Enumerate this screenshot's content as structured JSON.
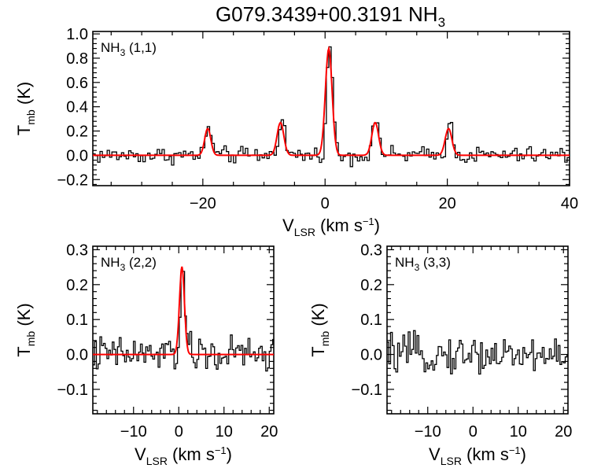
{
  "title": {
    "main": "G079.3439+00.3191 NH",
    "sub": "3"
  },
  "colors": {
    "observed": "#000000",
    "fit": "#ff0000"
  },
  "chart_data": [
    {
      "id": "nh3-11",
      "type": "line",
      "panel_label": {
        "main": "NH",
        "sub": "3",
        "rest": " (1,1)"
      },
      "xlabel": {
        "main": "V",
        "sub": "LSR",
        "rest": " (km s",
        "sup": "−1",
        "end": ")"
      },
      "ylabel": {
        "main": "T",
        "sub": "mb",
        "rest": " (K)"
      },
      "xlim": [
        -38,
        40
      ],
      "ylim": [
        -0.25,
        1.02
      ],
      "xticks": [
        -20,
        0,
        20,
        40
      ],
      "xtick_labels": [
        "−20",
        "0",
        "20",
        "40"
      ],
      "yticks": [
        -0.2,
        0.0,
        0.2,
        0.4,
        0.6,
        0.8,
        1.0
      ],
      "ytick_labels": [
        "−0.2",
        "0.0",
        "0.2",
        "0.4",
        "0.6",
        "0.8",
        "1.0"
      ],
      "series": [
        {
          "name": "observed",
          "style": "step",
          "x0": -38,
          "dx": 0.39,
          "noise_amp": 0.06,
          "components": [
            {
              "center": -19.2,
              "amp": 0.25,
              "sigma": 0.45
            },
            {
              "center": -7.3,
              "amp": 0.32,
              "sigma": 0.5
            },
            {
              "center": 0.6,
              "amp": 0.9,
              "sigma": 0.5
            },
            {
              "center": 8.2,
              "amp": 0.3,
              "sigma": 0.5
            },
            {
              "center": 20.2,
              "amp": 0.26,
              "sigma": 0.5
            }
          ]
        },
        {
          "name": "fit",
          "style": "line",
          "components": [
            {
              "center": -19.2,
              "amp": 0.22,
              "sigma": 0.5
            },
            {
              "center": -7.3,
              "amp": 0.27,
              "sigma": 0.55
            },
            {
              "center": 0.6,
              "amp": 0.88,
              "sigma": 0.55
            },
            {
              "center": 8.2,
              "amp": 0.27,
              "sigma": 0.55
            },
            {
              "center": 20.2,
              "amp": 0.22,
              "sigma": 0.55
            }
          ]
        }
      ]
    },
    {
      "id": "nh3-22",
      "type": "line",
      "panel_label": {
        "main": "NH",
        "sub": "3",
        "rest": " (2,2)"
      },
      "xlabel": {
        "main": "V",
        "sub": "LSR",
        "rest": " (km s",
        "sup": "−1",
        "end": ")"
      },
      "ylabel": {
        "main": "T",
        "sub": "mb",
        "rest": " (K)"
      },
      "xlim": [
        -19,
        21
      ],
      "ylim": [
        -0.17,
        0.31
      ],
      "xticks": [
        -10,
        0,
        10,
        20
      ],
      "xtick_labels": [
        "−10",
        "0",
        "10",
        "20"
      ],
      "yticks": [
        -0.1,
        0.0,
        0.1,
        0.2,
        0.3
      ],
      "ytick_labels": [
        "−0.1",
        "0.0",
        "0.1",
        "0.2",
        "0.3"
      ],
      "series": [
        {
          "name": "observed",
          "style": "step",
          "x0": -19,
          "dx": 0.39,
          "noise_amp": 0.045,
          "components": [
            {
              "center": 0.7,
              "amp": 0.25,
              "sigma": 0.5
            }
          ]
        },
        {
          "name": "fit",
          "style": "line",
          "components": [
            {
              "center": 0.7,
              "amp": 0.25,
              "sigma": 0.55
            }
          ]
        }
      ]
    },
    {
      "id": "nh3-33",
      "type": "line",
      "panel_label": {
        "main": "NH",
        "sub": "3",
        "rest": " (3,3)"
      },
      "xlabel": {
        "main": "V",
        "sub": "LSR",
        "rest": " (km s",
        "sup": "−1",
        "end": ")"
      },
      "ylabel": {
        "main": "T",
        "sub": "mb",
        "rest": " (K)"
      },
      "xlim": [
        -19,
        21
      ],
      "ylim": [
        -0.17,
        0.31
      ],
      "xticks": [
        -10,
        0,
        10,
        20
      ],
      "xtick_labels": [
        "−10",
        "0",
        "10",
        "20"
      ],
      "yticks": [
        -0.1,
        0.0,
        0.1,
        0.2,
        0.3
      ],
      "ytick_labels": [
        "−0.1",
        "0.0",
        "0.1",
        "0.2",
        "0.3"
      ],
      "series": [
        {
          "name": "observed",
          "style": "step",
          "x0": -19,
          "dx": 0.39,
          "noise_amp": 0.045,
          "components": []
        }
      ]
    }
  ]
}
